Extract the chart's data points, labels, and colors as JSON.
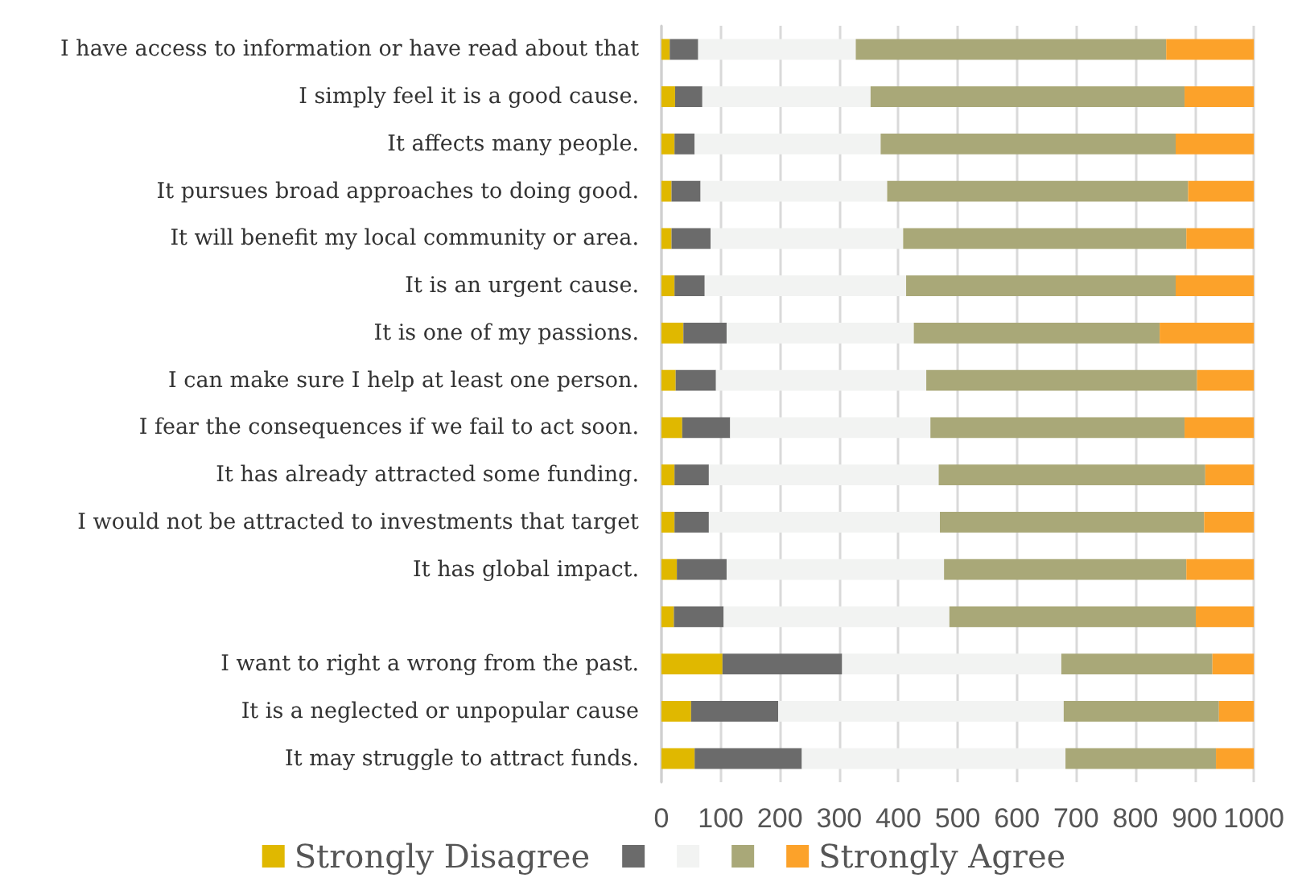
{
  "chart_data": {
    "type": "bar",
    "orientation": "horizontal",
    "stacked": true,
    "categories": [
      "I have access to information or have read about that",
      "I simply feel it is a good cause.",
      "It affects many people.",
      "It pursues broad approaches to doing good.",
      "It will benefit my local community or area.",
      "It is an urgent cause.",
      "It is one of my passions.",
      "I can make sure I help at least one person.",
      "I fear the consequences if we fail to act soon.",
      "It has already attracted some funding.",
      "I would not be attracted to investments that target",
      "It has global impact.",
      null,
      "I want to right a wrong from the past.",
      "It is a neglected or unpopular cause",
      "It may struggle to attract funds."
    ],
    "series": [
      {
        "name": "Strongly Disagree",
        "color": "#e0b800",
        "values": [
          14,
          23,
          22,
          17,
          17,
          22,
          37,
          24,
          35,
          22,
          22,
          26,
          21,
          103,
          50,
          56
        ]
      },
      {
        "color": "#6b6b6b",
        "values": [
          48,
          46,
          34,
          49,
          66,
          51,
          73,
          68,
          81,
          58,
          58,
          84,
          84,
          202,
          147,
          181
        ]
      },
      {
        "color": "#f2f3f2",
        "values": [
          266,
          284,
          314,
          315,
          325,
          340,
          316,
          355,
          338,
          388,
          390,
          367,
          381,
          370,
          482,
          445
        ]
      },
      {
        "color": "#a9a878",
        "values": [
          524,
          530,
          498,
          508,
          478,
          455,
          415,
          457,
          429,
          450,
          446,
          409,
          416,
          255,
          262,
          254
        ]
      },
      {
        "name": "Strongly Agree",
        "color": "#fca22a",
        "values": [
          148,
          117,
          132,
          111,
          114,
          132,
          159,
          96,
          117,
          82,
          84,
          114,
          98,
          70,
          59,
          64
        ]
      }
    ],
    "xlim": [
      0,
      1000
    ],
    "xticks": [
      0,
      100,
      200,
      300,
      400,
      500,
      600,
      700,
      800,
      900,
      1000
    ],
    "grid": "x",
    "legend": "bottom"
  }
}
